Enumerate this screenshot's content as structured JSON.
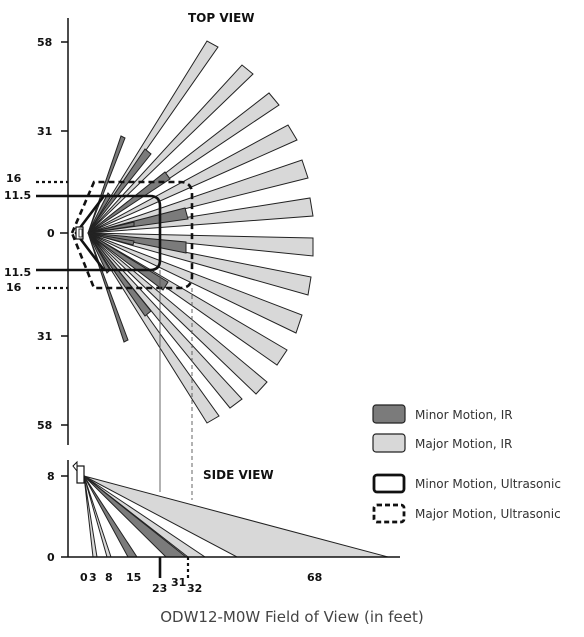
{
  "top_view": {
    "title": "TOP VIEW",
    "y_ticks": [
      "58",
      "31",
      "16",
      "11.5",
      "0",
      "11.5",
      "16",
      "31",
      "58"
    ]
  },
  "side_view": {
    "title": "SIDE VIEW",
    "y_ticks": [
      "8",
      "0"
    ],
    "x_ticks": [
      "0",
      "3",
      "8",
      "15",
      "23",
      "31",
      "32",
      "68"
    ]
  },
  "legend": {
    "items": [
      {
        "label": "Minor Motion, IR",
        "color": "#7b7b7b"
      },
      {
        "label": "Major Motion, IR",
        "color": "#d8d8d8"
      },
      {
        "label": "Minor Motion, Ultrasonic",
        "color": "#111111"
      },
      {
        "label": "Major Motion, Ultrasonic",
        "color": "#111111"
      }
    ]
  },
  "caption": "ODW12-M0W Field of View (in feet)"
}
